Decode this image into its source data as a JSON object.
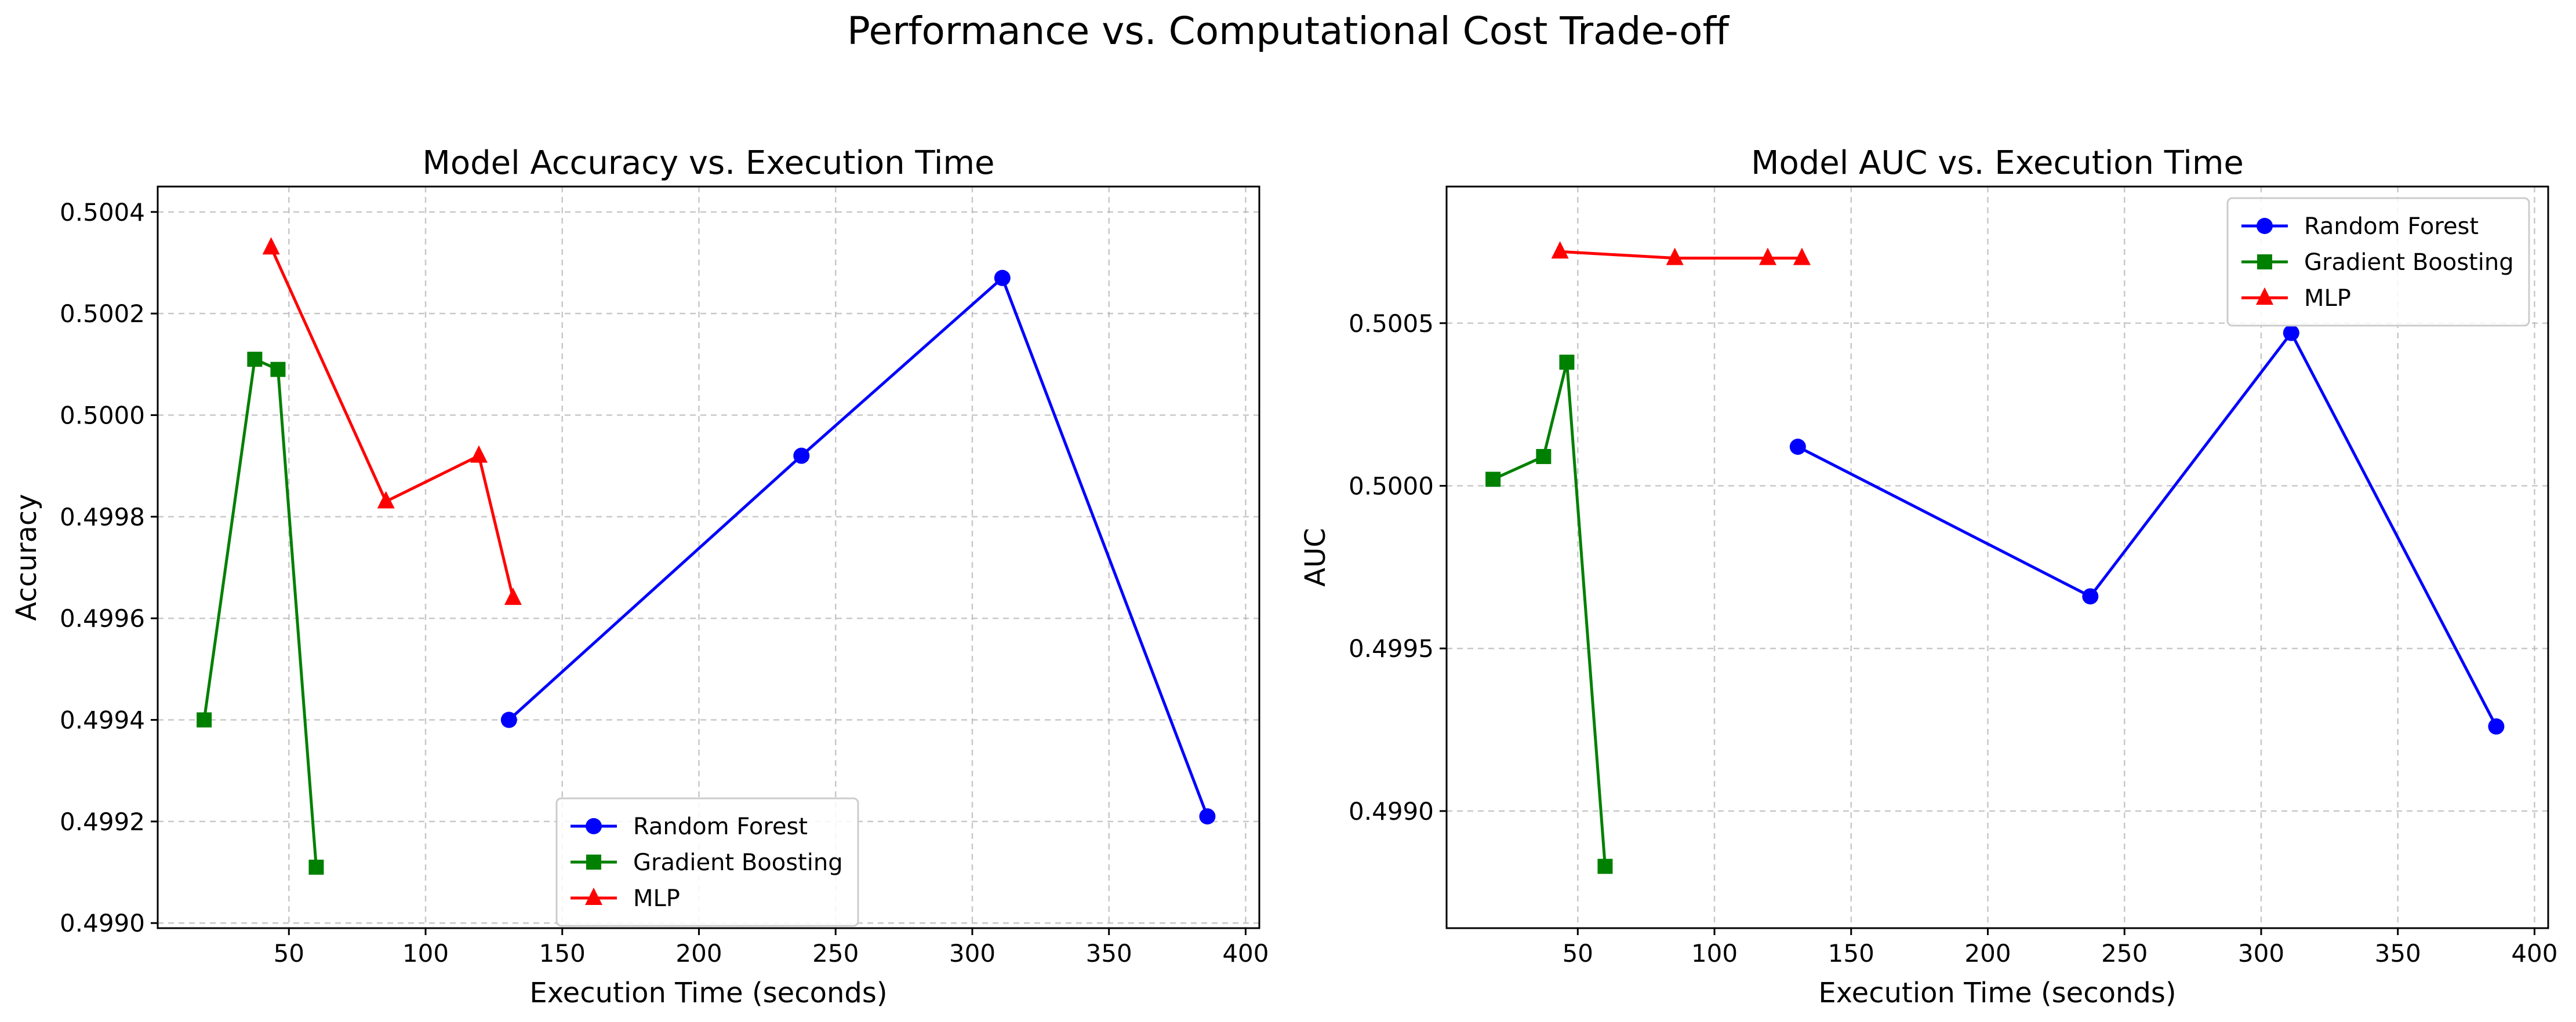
{
  "figure": {
    "suptitle": "Performance vs. Computational Cost Trade-off"
  },
  "colors": {
    "random_forest": "#0000ff",
    "gradient_boosting": "#008000",
    "mlp": "#ff0000",
    "grid": "#b0b0b0",
    "legend_border": "#cccccc"
  },
  "chart_data": [
    {
      "type": "line",
      "title": "Model Accuracy vs. Execution Time",
      "xlabel": "Execution Time (seconds)",
      "ylabel": "Accuracy",
      "xlim": [
        2,
        405
      ],
      "ylim": [
        0.49899,
        0.50045
      ],
      "xticks": [
        50,
        100,
        150,
        200,
        250,
        300,
        350,
        400
      ],
      "xtick_labels": [
        "50",
        "100",
        "150",
        "200",
        "250",
        "300",
        "350",
        "400"
      ],
      "yticks": [
        0.499,
        0.4992,
        0.4994,
        0.4996,
        0.4998,
        0.5,
        0.5002,
        0.5004
      ],
      "ytick_labels": [
        "0.4990",
        "0.4992",
        "0.4994",
        "0.4996",
        "0.4998",
        "0.5000",
        "0.5002",
        "0.5004"
      ],
      "grid": true,
      "legend_position": "bottom-center",
      "series": [
        {
          "name": "Random Forest",
          "marker": "circle",
          "color": "#0000ff",
          "x": [
            130.5,
            237.5,
            311,
            386
          ],
          "y": [
            0.4994,
            0.49992,
            0.50027,
            0.49921
          ]
        },
        {
          "name": "Gradient Boosting",
          "marker": "square",
          "color": "#008000",
          "x": [
            19,
            37.5,
            46,
            60
          ],
          "y": [
            0.4994,
            0.50011,
            0.50009,
            0.49911
          ]
        },
        {
          "name": "MLP",
          "marker": "triangle",
          "color": "#ff0000",
          "x": [
            43.5,
            85.5,
            119.5,
            132
          ],
          "y": [
            0.50033,
            0.49983,
            0.49992,
            0.49964
          ]
        }
      ]
    },
    {
      "type": "line",
      "title": "Model AUC vs. Execution Time",
      "xlabel": "Execution Time (seconds)",
      "ylabel": "AUC",
      "xlim": [
        2,
        405
      ],
      "ylim": [
        0.49864,
        0.50092
      ],
      "xticks": [
        50,
        100,
        150,
        200,
        250,
        300,
        350,
        400
      ],
      "xtick_labels": [
        "50",
        "100",
        "150",
        "200",
        "250",
        "300",
        "350",
        "400"
      ],
      "yticks": [
        0.499,
        0.4995,
        0.5,
        0.5005
      ],
      "ytick_labels": [
        "0.4990",
        "0.4995",
        "0.5000",
        "0.5005"
      ],
      "grid": true,
      "legend_position": "top-right",
      "series": [
        {
          "name": "Random Forest",
          "marker": "circle",
          "color": "#0000ff",
          "x": [
            130.5,
            237.5,
            311,
            386
          ],
          "y": [
            0.50012,
            0.49966,
            0.50047,
            0.49926
          ]
        },
        {
          "name": "Gradient Boosting",
          "marker": "square",
          "color": "#008000",
          "x": [
            19,
            37.5,
            46,
            60
          ],
          "y": [
            0.50002,
            0.50009,
            0.50038,
            0.49883
          ]
        },
        {
          "name": "MLP",
          "marker": "triangle",
          "color": "#ff0000",
          "x": [
            43.5,
            85.5,
            119.5,
            132
          ],
          "y": [
            0.50072,
            0.5007,
            0.5007,
            0.5007
          ]
        }
      ]
    }
  ]
}
